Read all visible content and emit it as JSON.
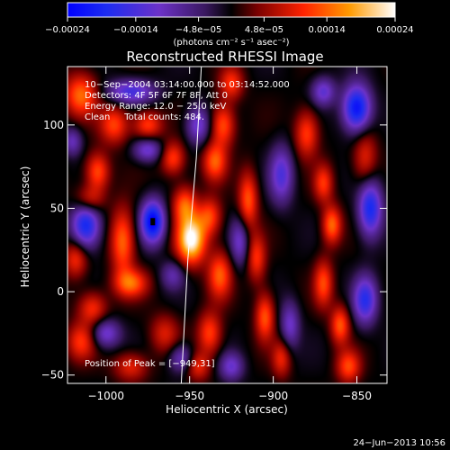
{
  "chart_data": {
    "type": "heatmap",
    "title": "Reconstructed RHESSI Image",
    "xlabel": "Heliocentric X (arcsec)",
    "ylabel": "Heliocentric Y (arcsec)",
    "xlim": [
      -1023,
      -832
    ],
    "ylim": [
      -55,
      135
    ],
    "x_ticks": [
      -1000,
      -950,
      -900,
      -850
    ],
    "x_tick_labels": [
      "−1000",
      "−950",
      "−900",
      "−850"
    ],
    "y_ticks": [
      -50,
      0,
      50,
      100
    ],
    "y_tick_labels": [
      "−50",
      "0",
      "50",
      "100"
    ],
    "colorbar": {
      "min": -0.00024,
      "max": 0.00024,
      "tick_labels": [
        "−0.00024",
        "−0.00014",
        "−4.8e−05",
        "4.8e−05",
        "0.00014",
        "0.00024"
      ],
      "tick_values": [
        -0.00024,
        -0.00014,
        -4.8e-05,
        4.8e-05,
        0.00014,
        0.00024
      ],
      "unit_label": "(photons cm⁻² s⁻¹ asec⁻²)"
    },
    "annotations": [
      "10−Sep−2004 03:14:00.000 to 03:14:52.000",
      "Detectors: 4F 5F 6F 7F 8F, Att 0",
      "Energy Range: 12.0 − 25.0 keV",
      "Clean     Total counts: 484."
    ],
    "peak_label": "Position of Peak = [−949,31]",
    "peak": {
      "x": -949,
      "y": 31
    },
    "minimum_marker": {
      "x": -972,
      "y": 42
    },
    "limb_curve": [
      [
        -955,
        -55
      ],
      [
        -951,
        20
      ],
      [
        -946,
        80
      ],
      [
        -943,
        135
      ]
    ],
    "components": [
      {
        "x": -949,
        "y": 31,
        "sx": 6,
        "sy": 10,
        "amp": 1.0
      },
      {
        "x": -953,
        "y": 52,
        "sx": 5,
        "sy": 8,
        "amp": 0.55
      },
      {
        "x": -935,
        "y": 78,
        "sx": 5,
        "sy": 8,
        "amp": 0.55
      },
      {
        "x": -930,
        "y": 100,
        "sx": 5,
        "sy": 9,
        "amp": 0.55
      },
      {
        "x": -925,
        "y": 125,
        "sx": 5,
        "sy": 7,
        "amp": 0.45
      },
      {
        "x": -938,
        "y": 45,
        "sx": 5,
        "sy": 8,
        "amp": 0.5
      },
      {
        "x": -932,
        "y": 10,
        "sx": 5,
        "sy": 10,
        "amp": 0.55
      },
      {
        "x": -938,
        "y": -25,
        "sx": 5,
        "sy": 9,
        "amp": 0.5
      },
      {
        "x": -945,
        "y": -45,
        "sx": 5,
        "sy": 6,
        "amp": 0.4
      },
      {
        "x": -915,
        "y": 55,
        "sx": 4,
        "sy": 12,
        "amp": 0.55
      },
      {
        "x": -910,
        "y": 20,
        "sx": 4,
        "sy": 10,
        "amp": 0.45
      },
      {
        "x": -905,
        "y": -15,
        "sx": 4,
        "sy": 10,
        "amp": 0.55
      },
      {
        "x": -895,
        "y": -40,
        "sx": 4,
        "sy": 8,
        "amp": 0.4
      },
      {
        "x": -880,
        "y": 95,
        "sx": 5,
        "sy": 10,
        "amp": 0.5
      },
      {
        "x": -870,
        "y": 65,
        "sx": 4,
        "sy": 8,
        "amp": 0.45
      },
      {
        "x": -865,
        "y": 40,
        "sx": 4,
        "sy": 8,
        "amp": 0.6
      },
      {
        "x": -870,
        "y": 5,
        "sx": 4,
        "sy": 10,
        "amp": 0.5
      },
      {
        "x": -860,
        "y": -20,
        "sx": 4,
        "sy": 8,
        "amp": 0.55
      },
      {
        "x": -855,
        "y": -45,
        "sx": 5,
        "sy": 7,
        "amp": 0.5
      },
      {
        "x": -845,
        "y": 80,
        "sx": 5,
        "sy": 12,
        "amp": 0.4
      },
      {
        "x": -1015,
        "y": 118,
        "sx": 7,
        "sy": 9,
        "amp": 0.6
      },
      {
        "x": -995,
        "y": 100,
        "sx": 6,
        "sy": 8,
        "amp": 0.5
      },
      {
        "x": -1005,
        "y": 72,
        "sx": 5,
        "sy": 8,
        "amp": 0.55
      },
      {
        "x": -1010,
        "y": 55,
        "sx": 6,
        "sy": 6,
        "amp": 0.45
      },
      {
        "x": -990,
        "y": 30,
        "sx": 5,
        "sy": 14,
        "amp": 0.6
      },
      {
        "x": -1018,
        "y": 20,
        "sx": 5,
        "sy": 8,
        "amp": 0.45
      },
      {
        "x": -985,
        "y": 5,
        "sx": 7,
        "sy": 6,
        "amp": 0.55
      },
      {
        "x": -1008,
        "y": -10,
        "sx": 6,
        "sy": 7,
        "amp": 0.45
      },
      {
        "x": -975,
        "y": 100,
        "sx": 6,
        "sy": 6,
        "amp": 0.5
      },
      {
        "x": -960,
        "y": 80,
        "sx": 5,
        "sy": 7,
        "amp": 0.5
      },
      {
        "x": -1015,
        "y": -30,
        "sx": 6,
        "sy": 8,
        "amp": 0.45
      },
      {
        "x": -985,
        "y": -45,
        "sx": 7,
        "sy": 6,
        "amp": 0.4
      },
      {
        "x": -965,
        "y": -25,
        "sx": 6,
        "sy": 8,
        "amp": 0.35
      },
      {
        "x": -1012,
        "y": 40,
        "sx": 6,
        "sy": 10,
        "amp": -0.85
      },
      {
        "x": -972,
        "y": 42,
        "sx": 5,
        "sy": 9,
        "amp": -1.0
      },
      {
        "x": -985,
        "y": 120,
        "sx": 10,
        "sy": 5,
        "amp": -0.6
      },
      {
        "x": -975,
        "y": 85,
        "sx": 6,
        "sy": 5,
        "amp": -0.5
      },
      {
        "x": -945,
        "y": 100,
        "sx": 5,
        "sy": 8,
        "amp": -0.5
      },
      {
        "x": -920,
        "y": 30,
        "sx": 4,
        "sy": 10,
        "amp": -0.45
      },
      {
        "x": -895,
        "y": 70,
        "sx": 5,
        "sy": 12,
        "amp": -0.55
      },
      {
        "x": -890,
        "y": -20,
        "sx": 4,
        "sy": 10,
        "amp": -0.45
      },
      {
        "x": -850,
        "y": 110,
        "sx": 6,
        "sy": 10,
        "amp": -0.95
      },
      {
        "x": -842,
        "y": 50,
        "sx": 5,
        "sy": 12,
        "amp": -0.8
      },
      {
        "x": -845,
        "y": -5,
        "sx": 5,
        "sy": 10,
        "amp": -0.7
      },
      {
        "x": -870,
        "y": 120,
        "sx": 5,
        "sy": 6,
        "amp": -0.5
      },
      {
        "x": -1000,
        "y": -25,
        "sx": 6,
        "sy": 6,
        "amp": -0.5
      },
      {
        "x": -955,
        "y": -40,
        "sx": 5,
        "sy": 6,
        "amp": -0.45
      },
      {
        "x": -925,
        "y": -45,
        "sx": 5,
        "sy": 6,
        "amp": -0.45
      },
      {
        "x": -960,
        "y": 10,
        "sx": 5,
        "sy": 6,
        "amp": -0.35
      },
      {
        "x": -1020,
        "y": 90,
        "sx": 4,
        "sy": 6,
        "amp": -0.4
      }
    ]
  },
  "footer": {
    "date": "24−Jun−2013 10:56"
  }
}
